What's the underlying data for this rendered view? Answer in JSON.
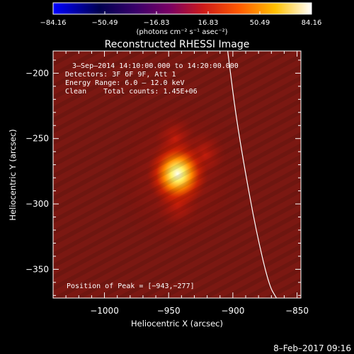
{
  "chart_data": {
    "type": "heatmap",
    "title": "Reconstructed RHESSI Image",
    "xlabel": "Heliocentric X (arcsec)",
    "ylabel": "Heliocentric Y (arcsec)",
    "xlim": [
      -1040,
      -847
    ],
    "ylim": [
      -372,
      -183
    ],
    "x_ticks": [
      {
        "value": -1000,
        "label": "−1000"
      },
      {
        "value": -950,
        "label": "−950"
      },
      {
        "value": -900,
        "label": "−900"
      },
      {
        "value": -850,
        "label": "−850"
      }
    ],
    "y_ticks": [
      {
        "value": -200,
        "label": "−200"
      },
      {
        "value": -250,
        "label": "−250"
      },
      {
        "value": -300,
        "label": "−300"
      },
      {
        "value": -350,
        "label": "−350"
      }
    ],
    "colorbar": {
      "min": -84.16,
      "max": 84.16,
      "tick_values": [
        -84.16,
        -50.49,
        -16.83,
        16.83,
        50.49,
        84.16
      ],
      "tick_labels": [
        "−84.16",
        "−50.49",
        "−16.83",
        "16.83",
        "50.49",
        "84.16"
      ],
      "units_label": "(photons cm⁻² s⁻¹ asec⁻²)"
    },
    "info_lines": [
      "3–Sep–2014 14:10:00.000 to 14:20:00.000",
      "Detectors: 3F 6F 9F, Att 1",
      "Energy Range: 6.0 – 12.0 keV",
      "Clean    Total counts: 1.45E+06"
    ],
    "peak_label": "Position of Peak = [−943,−277]",
    "peak": [
      -943,
      -277
    ],
    "sources": [
      {
        "x": -943,
        "y": -277,
        "value": 84.16
      },
      {
        "x": -943,
        "y": -300,
        "value": 35
      },
      {
        "x": -945,
        "y": -250,
        "value": 25
      },
      {
        "x": -922,
        "y": -262,
        "value": 25
      }
    ],
    "limb_curve": [
      [
        -904,
        -183
      ],
      [
        -898,
        -230
      ],
      [
        -891,
        -272
      ],
      [
        -882,
        -320
      ],
      [
        -872,
        -362
      ],
      [
        -866,
        -372
      ]
    ],
    "timestamp": "8–Feb–2017 09:16"
  }
}
